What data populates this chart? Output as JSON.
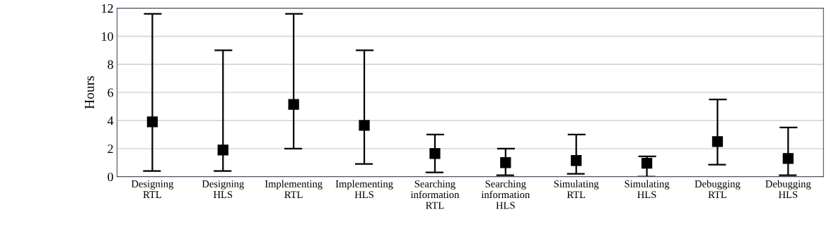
{
  "chart_data": {
    "type": "scatter",
    "ylabel": "Hours",
    "categories": [
      "Designing\nRTL",
      "Designing\nHLS",
      "Implementing\nRTL",
      "Implementing\nHLS",
      "Searching\ninformation\nRTL",
      "Searching\ninformation\nHLS",
      "Simulating\nRTL",
      "Simulating\nHLS",
      "Debugging\nRTL",
      "Debugging\nHLS"
    ],
    "values": [
      3.9,
      1.9,
      5.15,
      3.65,
      1.65,
      1.0,
      1.15,
      0.95,
      2.5,
      1.3
    ],
    "errors": [
      [
        0.4,
        11.6
      ],
      [
        0.4,
        9.0
      ],
      [
        2.0,
        11.6
      ],
      [
        0.9,
        9.0
      ],
      [
        0.3,
        3.0
      ],
      [
        0.1,
        2.0
      ],
      [
        0.2,
        3.0
      ],
      [
        0.0,
        1.45
      ],
      [
        0.85,
        5.5
      ],
      [
        0.1,
        3.5
      ]
    ],
    "color": "#000000",
    "marker": "square",
    "ylim": [
      0,
      12
    ],
    "yticks": [
      0,
      2,
      4,
      6,
      8,
      10,
      12
    ],
    "grid": "y"
  }
}
